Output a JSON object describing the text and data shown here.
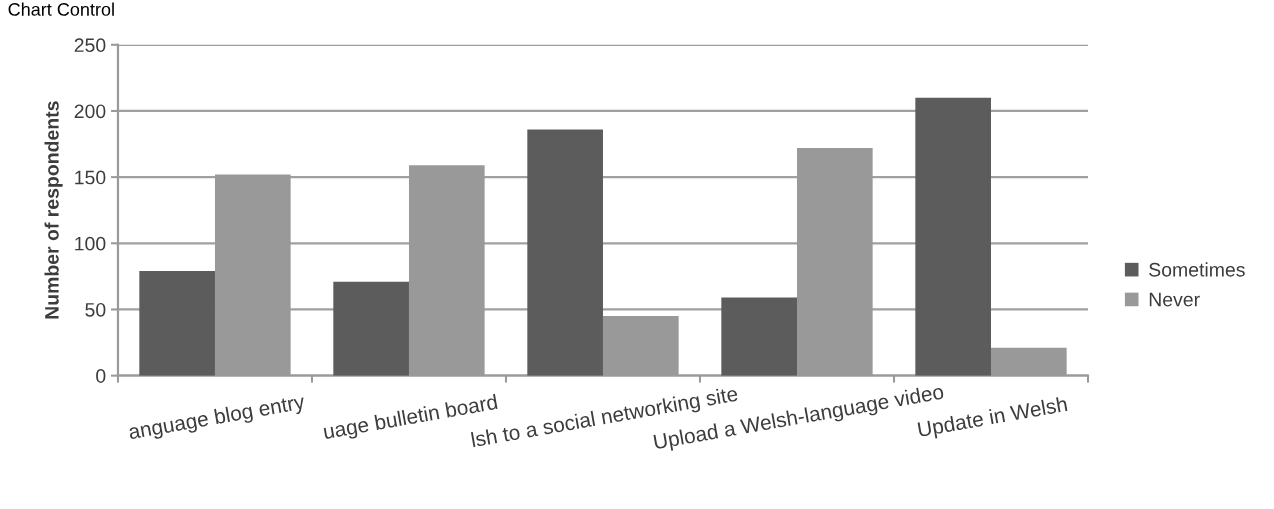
{
  "chart_data": {
    "type": "bar",
    "annotations": [
      "Chart Control"
    ],
    "ylabel": "Number of respondents",
    "categories": [
      "anguage blog entry",
      "uage bulletin board",
      "lsh to a social networking site",
      "Upload a Welsh-language video",
      "Update in Welsh"
    ],
    "series": [
      {
        "name": "Sometimes",
        "color": "#5c5c5c",
        "values": [
          79,
          71,
          186,
          59,
          210
        ]
      },
      {
        "name": "Never",
        "color": "#999999",
        "values": [
          152,
          159,
          45,
          172,
          21
        ]
      }
    ],
    "ylim": [
      0,
      250
    ],
    "yticks": [
      0,
      50,
      100,
      150,
      200,
      250
    ],
    "grid": "y",
    "legend": "right"
  }
}
